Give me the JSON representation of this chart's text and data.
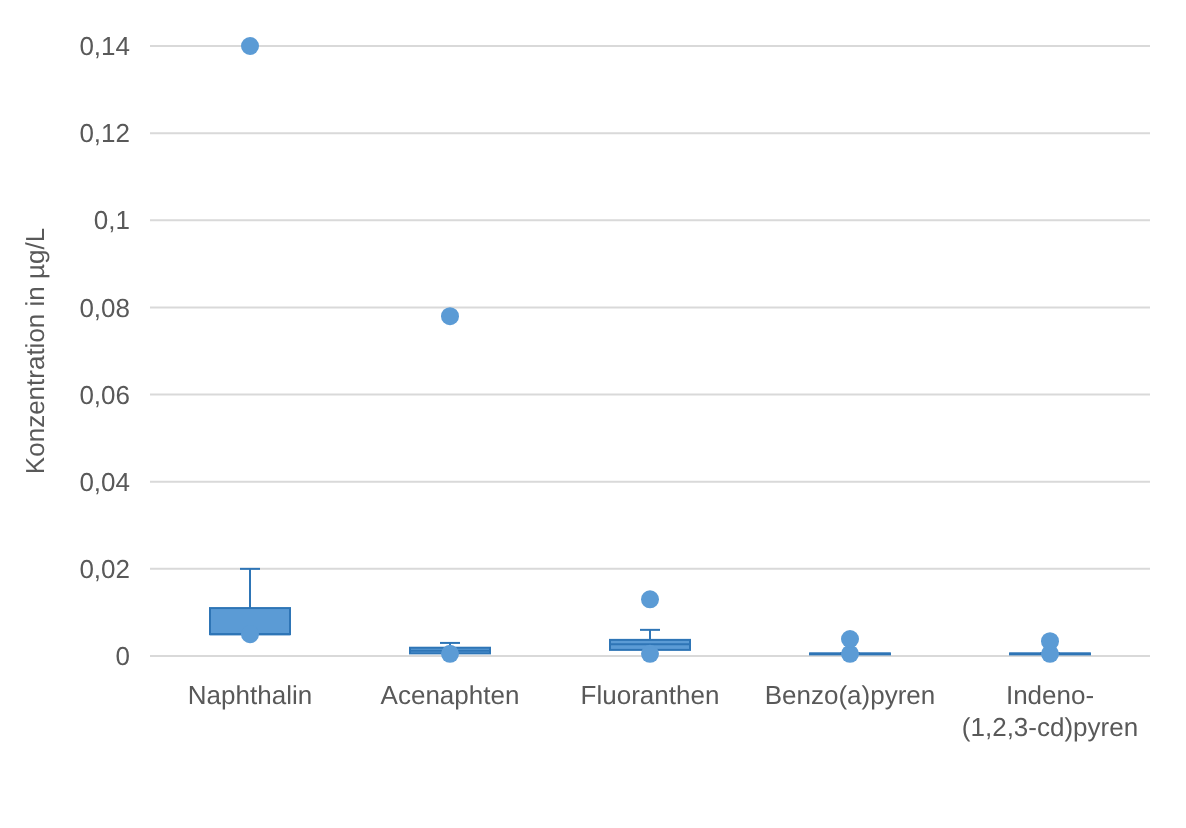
{
  "chart_data": {
    "type": "box",
    "ylabel": "Konzentration in µg/L",
    "categories": [
      "Naphthalin",
      "Acenaphten",
      "Fluoranthen",
      "Benzo(a)pyren",
      "Indeno-(1,2,3-cd)pyren"
    ],
    "boxes": [
      {
        "low": 0.005,
        "q1": 0.005,
        "median": 0.005,
        "q3": 0.011,
        "high": 0.02,
        "outliers": [
          0.005,
          0.14
        ]
      },
      {
        "low": 0.0006,
        "q1": 0.0006,
        "median": 0.0012,
        "q3": 0.0019,
        "high": 0.003,
        "outliers": [
          0.0005,
          0.078
        ]
      },
      {
        "low": 0.0014,
        "q1": 0.0014,
        "median": 0.0027,
        "q3": 0.0037,
        "high": 0.006,
        "outliers": [
          0.0005,
          0.013
        ]
      },
      {
        "low": 0.0005,
        "q1": 0.0005,
        "median": 0.0005,
        "q3": 0.0006,
        "high": 0.0006,
        "outliers": [
          0.0005,
          0.0039
        ]
      },
      {
        "low": 0.0005,
        "q1": 0.0005,
        "median": 0.0005,
        "q3": 0.0006,
        "high": 0.0006,
        "outliers": [
          0.0005,
          0.0034
        ]
      }
    ],
    "color": "#5b9bd5",
    "ylim": [
      0,
      0.14
    ],
    "yticks": [
      {
        "value": 0,
        "label": "0"
      },
      {
        "value": 0.02,
        "label": "0,02"
      },
      {
        "value": 0.04,
        "label": "0,04"
      },
      {
        "value": 0.06,
        "label": "0,06"
      },
      {
        "value": 0.08,
        "label": "0,08"
      },
      {
        "value": 0.1,
        "label": "0,1"
      },
      {
        "value": 0.12,
        "label": "0,12"
      },
      {
        "value": 0.14,
        "label": "0,14"
      }
    ],
    "grid": "y"
  }
}
